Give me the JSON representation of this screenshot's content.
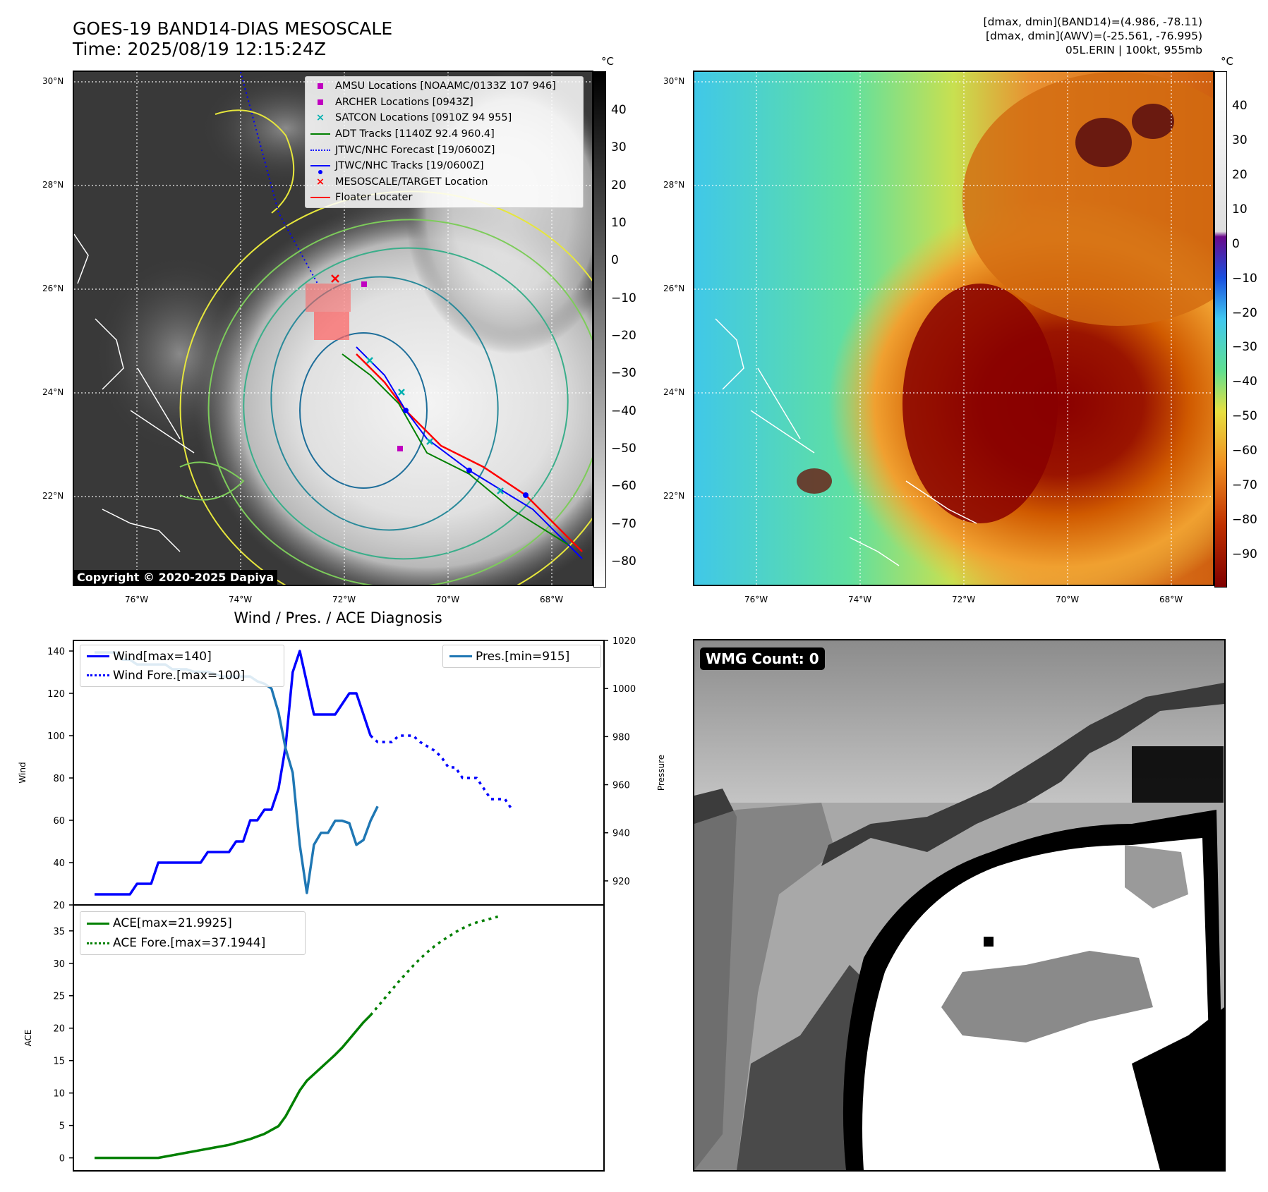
{
  "header": {
    "title_line1": "GOES-19 BAND14-DIAS MESOSCALE",
    "title_line2": "Time: 2025/08/19 12:15:24Z",
    "info_line1": "[dmax, dmin](BAND14)=(4.986, -78.11)",
    "info_line2": "[dmax, dmin](AWV)=(-25.561, -76.995)",
    "info_line3": "05L.ERIN | 100kt, 955mb"
  },
  "map_panel": {
    "lat_labels": [
      "30°N",
      "28°N",
      "26°N",
      "24°N",
      "22°N"
    ],
    "lon_labels": [
      "76°W",
      "74°W",
      "72°W",
      "70°W",
      "68°W"
    ],
    "legend": [
      {
        "label": "AMSU Locations [NOAAMC/0133Z 107 946]",
        "icon": "magenta-square",
        "color": "#c000c0"
      },
      {
        "label": "ARCHER Locations [0943Z]",
        "icon": "magenta-square",
        "color": "#c000c0"
      },
      {
        "label": "SATCON Locations [0910Z 94 955]",
        "icon": "cyan-x",
        "color": "#00b0b0"
      },
      {
        "label": "ADT Tracks [1140Z 92.4 960.4]",
        "icon": "green-line",
        "color": "#008000"
      },
      {
        "label": "JTWC/NHC Forecast [19/0600Z]",
        "icon": "blue-dotted-line",
        "color": "#0000ff"
      },
      {
        "label": "JTWC/NHC Tracks [19/0600Z]",
        "icon": "blue-dot-line",
        "color": "#0000ff"
      },
      {
        "label": "MESOSCALE/TARGET Location",
        "icon": "red-x",
        "color": "#ff0000"
      },
      {
        "label": "Floater Locater",
        "icon": "red-line",
        "color": "#ff0000"
      }
    ],
    "copyright": "Copyright © 2020-2025 Dapiya",
    "colorbar_unit": "°C",
    "colorbar_ticks": [
      "40",
      "30",
      "20",
      "10",
      "0",
      "−10",
      "−20",
      "−30",
      "−40",
      "−50",
      "−60",
      "−70",
      "−80"
    ]
  },
  "awv_panel": {
    "colorbar_unit": "°C",
    "colorbar_ticks": [
      "40",
      "30",
      "20",
      "10",
      "0",
      "−10",
      "−20",
      "−30",
      "−40",
      "−50",
      "−60",
      "−70",
      "−80",
      "−90"
    ]
  },
  "wmg_panel": {
    "label": "WMG Count: 0"
  },
  "chart_data": [
    {
      "type": "line",
      "title": "Wind / Pres. / ACE Diagnosis",
      "ylabel": "Wind",
      "ylabel_right": "Pressure",
      "ylim": [
        20,
        145
      ],
      "ylim_right": [
        910,
        1020
      ],
      "yticks": [
        "20",
        "40",
        "60",
        "80",
        "100",
        "120",
        "140"
      ],
      "yticks_right": [
        "920",
        "940",
        "960",
        "980",
        "1000",
        "1020"
      ],
      "series": [
        {
          "name": "Wind[max=140]",
          "color": "#0000ff",
          "style": "solid",
          "values": [
            25,
            25,
            25,
            25,
            25,
            25,
            30,
            30,
            30,
            40,
            40,
            40,
            40,
            40,
            40,
            40,
            45,
            45,
            45,
            45,
            50,
            50,
            60,
            60,
            65,
            65,
            75,
            95,
            130,
            140,
            125,
            110,
            110,
            110,
            110,
            115,
            120,
            120,
            110,
            100
          ]
        },
        {
          "name": "Wind Fore.[max=100]",
          "color": "#0000ff",
          "style": "dotted",
          "start_index": 39,
          "values": [
            100,
            97,
            97,
            97,
            100,
            100,
            100,
            97,
            95,
            93,
            90,
            85,
            85,
            80,
            80,
            80,
            75,
            70,
            70,
            70,
            65
          ]
        },
        {
          "name": "Pres.[min=915]",
          "color": "#1f77b4",
          "style": "solid",
          "axis": "right",
          "values": [
            1015,
            1015,
            1015,
            1015,
            1012,
            1012,
            1010,
            1010,
            1010,
            1010,
            1010,
            1008,
            1008,
            1008,
            1007,
            1007,
            1007,
            1006,
            1005,
            1005,
            1005,
            1005,
            1005,
            1003,
            1002,
            1000,
            990,
            975,
            965,
            935,
            915,
            935,
            940,
            940,
            945,
            945,
            944,
            935,
            937,
            945,
            951
          ]
        }
      ]
    },
    {
      "type": "line",
      "ylabel": "ACE",
      "ylim": [
        -2,
        39
      ],
      "yticks": [
        "0",
        "5",
        "10",
        "15",
        "20",
        "25",
        "30",
        "35"
      ],
      "series": [
        {
          "name": "ACE[max=21.9925]",
          "color": "#008000",
          "style": "solid",
          "values": [
            0,
            0,
            0,
            0,
            0,
            0,
            0,
            0,
            0,
            0,
            0.2,
            0.4,
            0.6,
            0.8,
            1.0,
            1.2,
            1.4,
            1.6,
            1.8,
            2.0,
            2.3,
            2.6,
            2.9,
            3.3,
            3.7,
            4.3,
            4.9,
            6.4,
            8.4,
            10.4,
            11.9,
            12.9,
            13.9,
            14.9,
            15.9,
            17.0,
            18.3,
            19.6,
            20.9,
            22.0
          ]
        },
        {
          "name": "ACE Fore.[max=37.1944]",
          "color": "#008000",
          "style": "dotted",
          "start_index": 39,
          "values": [
            22.0,
            23.3,
            24.6,
            25.9,
            27.2,
            28.4,
            29.6,
            30.7,
            31.7,
            32.6,
            33.4,
            34.1,
            34.8,
            35.4,
            35.9,
            36.3,
            36.6,
            36.9,
            37.2
          ]
        }
      ]
    }
  ]
}
